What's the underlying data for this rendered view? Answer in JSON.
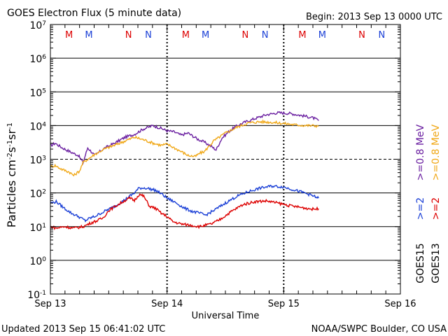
{
  "chart_data": {
    "type": "line",
    "title": "GOES Electron Flux (5 minute data)",
    "begin_label": "Begin: 2013 Sep 13 0000 UTC",
    "xlabel": "Universal Time",
    "ylabel_parts": [
      "Particles cm",
      "-2",
      "s",
      "-1",
      "sr",
      "-1"
    ],
    "x_unit": "days since 2013 Sep 13 0000 UTC",
    "xlim": [
      0,
      3
    ],
    "ylim_log10": [
      -1,
      7
    ],
    "y_ticks": [
      {
        "base": "10",
        "exp": "-1"
      },
      {
        "base": "10",
        "exp": "0"
      },
      {
        "base": "10",
        "exp": "1"
      },
      {
        "base": "10",
        "exp": "2"
      },
      {
        "base": "10",
        "exp": "3"
      },
      {
        "base": "10",
        "exp": "4"
      },
      {
        "base": "10",
        "exp": "5"
      },
      {
        "base": "10",
        "exp": "6"
      },
      {
        "base": "10",
        "exp": "7"
      }
    ],
    "x_tick_labels": [
      "Sep 13",
      "Sep 14",
      "Sep 15",
      "Sep 16"
    ],
    "threshold_line": 1000,
    "day_markers": [
      {
        "label": "M",
        "day": 0.16,
        "color": "#dd0000"
      },
      {
        "label": "M",
        "day": 0.33,
        "color": "#1a3fd6"
      },
      {
        "label": "N",
        "day": 0.67,
        "color": "#dd0000"
      },
      {
        "label": "N",
        "day": 0.84,
        "color": "#1a3fd6"
      },
      {
        "label": "M",
        "day": 1.16,
        "color": "#dd0000"
      },
      {
        "label": "M",
        "day": 1.33,
        "color": "#1a3fd6"
      },
      {
        "label": "N",
        "day": 1.67,
        "color": "#dd0000"
      },
      {
        "label": "N",
        "day": 1.84,
        "color": "#1a3fd6"
      },
      {
        "label": "M",
        "day": 2.16,
        "color": "#dd0000"
      },
      {
        "label": "M",
        "day": 2.33,
        "color": "#1a3fd6"
      },
      {
        "label": "N",
        "day": 2.67,
        "color": "#dd0000"
      },
      {
        "label": "N",
        "day": 2.84,
        "color": "#1a3fd6"
      }
    ],
    "legend_right": [
      {
        "satellite": "GOES15",
        "ge2": ">=2",
        "ge08": ">=0.8 MeV",
        "color_ge2": "#1a3fd6",
        "color_ge08": "#6a1fa0"
      },
      {
        "satellite": "GOES13",
        "ge2": ">=2",
        "ge08": ">=0.8 MeV",
        "color_ge2": "#dd0000",
        "color_ge08": "#f0a818"
      }
    ],
    "series": [
      {
        "name": "GOES15 >=0.8 MeV",
        "color": "#6a1fa0",
        "x": [
          0,
          0.04,
          0.1,
          0.18,
          0.24,
          0.28,
          0.32,
          0.38,
          0.46,
          0.55,
          0.64,
          0.72,
          0.8,
          0.88,
          0.96,
          1.0,
          1.06,
          1.12,
          1.18,
          1.26,
          1.32,
          1.38,
          1.42,
          1.47,
          1.52,
          1.58,
          1.65,
          1.75,
          1.85,
          1.95,
          2.05,
          2.15,
          2.25,
          2.3
        ],
        "y": [
          2500,
          3000,
          2200,
          1600,
          1300,
          800,
          2200,
          1300,
          2100,
          3000,
          4500,
          5500,
          8000,
          10000,
          8000,
          7000,
          6500,
          5200,
          6000,
          4000,
          3200,
          2400,
          1900,
          4200,
          6200,
          9000,
          12000,
          16000,
          21000,
          24000,
          23000,
          20000,
          17000,
          14000
        ]
      },
      {
        "name": "GOES13 >=0.8 MeV",
        "color": "#f0a818",
        "x": [
          0,
          0.04,
          0.1,
          0.16,
          0.2,
          0.25,
          0.28,
          0.32,
          0.38,
          0.46,
          0.55,
          0.64,
          0.72,
          0.8,
          0.88,
          0.95,
          1.0,
          1.06,
          1.12,
          1.18,
          1.24,
          1.28,
          1.32,
          1.4,
          1.5,
          1.6,
          1.7,
          1.8,
          1.9,
          2.0,
          2.1,
          2.2,
          2.3
        ],
        "y": [
          600,
          650,
          500,
          420,
          330,
          450,
          800,
          1000,
          1400,
          2000,
          2600,
          3500,
          4500,
          3800,
          3000,
          2600,
          2800,
          2200,
          1700,
          1300,
          1200,
          1500,
          1700,
          3500,
          6000,
          9000,
          12000,
          13000,
          12500,
          11500,
          10500,
          10000,
          9800
        ]
      },
      {
        "name": "GOES15 >=2 MeV",
        "color": "#1a3fd6",
        "x": [
          0,
          0.05,
          0.12,
          0.18,
          0.24,
          0.3,
          0.34,
          0.38,
          0.46,
          0.55,
          0.63,
          0.68,
          0.72,
          0.76,
          0.82,
          0.9,
          0.96,
          1.0,
          1.08,
          1.15,
          1.22,
          1.28,
          1.33,
          1.4,
          1.5,
          1.6,
          1.7,
          1.8,
          1.9,
          2.0,
          2.1,
          2.2,
          2.3
        ],
        "y": [
          50,
          55,
          35,
          25,
          20,
          15,
          18,
          20,
          28,
          40,
          60,
          80,
          100,
          140,
          140,
          120,
          90,
          70,
          50,
          35,
          28,
          25,
          22,
          30,
          50,
          80,
          110,
          140,
          160,
          150,
          120,
          95,
          70
        ]
      },
      {
        "name": "GOES13 >=2 MeV",
        "color": "#dd0000",
        "x": [
          0,
          0.05,
          0.12,
          0.2,
          0.28,
          0.35,
          0.4,
          0.45,
          0.5,
          0.58,
          0.64,
          0.68,
          0.72,
          0.76,
          0.8,
          0.85,
          0.9,
          0.95,
          1.0,
          1.05,
          1.12,
          1.2,
          1.28,
          1.33,
          1.38,
          1.45,
          1.55,
          1.65,
          1.75,
          1.85,
          1.95,
          2.05,
          2.15,
          2.25,
          2.3
        ],
        "y": [
          10,
          9,
          10,
          9,
          10,
          13,
          15,
          18,
          30,
          45,
          60,
          70,
          60,
          90,
          80,
          40,
          35,
          25,
          20,
          14,
          12,
          11,
          10,
          11,
          12,
          16,
          28,
          45,
          55,
          58,
          50,
          42,
          37,
          33,
          34
        ]
      }
    ],
    "footer_left": "Updated 2013 Sep 15 06:41:02 UTC",
    "footer_right": "NOAA/SWPC Boulder, CO USA"
  }
}
